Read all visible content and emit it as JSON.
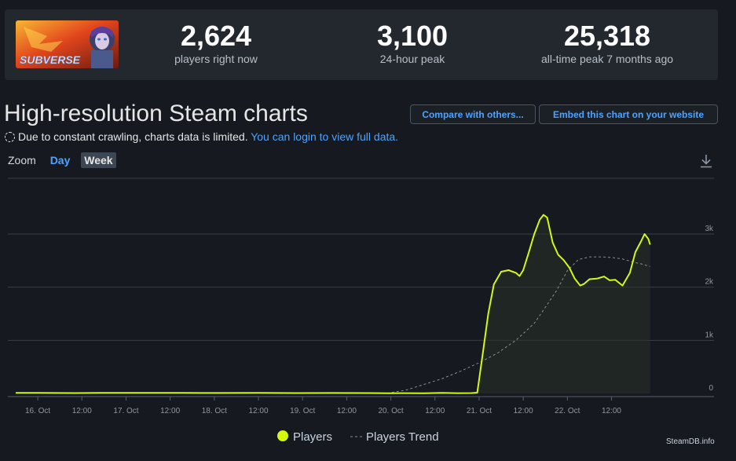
{
  "header": {
    "logo_text": "SUBVERSE",
    "stats": [
      {
        "value": "2,624",
        "label": "players right now"
      },
      {
        "value": "3,100",
        "label": "24-hour peak"
      },
      {
        "value": "25,318",
        "label": "all-time peak 7 months ago"
      }
    ]
  },
  "page": {
    "title": "High-resolution Steam charts",
    "compare_button": "Compare with others...",
    "embed_button": "Embed this chart on your website",
    "notice_text": "Due to constant crawling, charts data is limited.",
    "notice_link": "You can login to view full data.",
    "zoom_label": "Zoom",
    "zoom_day": "Day",
    "zoom_week": "Week",
    "watermark": "SteamDB.info"
  },
  "colors": {
    "players": "#d4f90f",
    "trend": "#8a8f96",
    "grid": "#3a3f47",
    "accent": "#4da3ff"
  },
  "chart_data": {
    "type": "line",
    "title": "",
    "xlabel": "",
    "ylabel": "",
    "ylim": [
      0,
      3000
    ],
    "x_range_hours": [
      -6,
      174
    ],
    "y_ticks": [
      {
        "value": 0,
        "label": "0"
      },
      {
        "value": 1000,
        "label": "1k"
      },
      {
        "value": 2000,
        "label": "2k"
      },
      {
        "value": 3000,
        "label": "3k"
      }
    ],
    "x_ticks": [
      {
        "hours": 0,
        "label": "16. Oct"
      },
      {
        "hours": 12,
        "label": "12:00"
      },
      {
        "hours": 24,
        "label": "17. Oct"
      },
      {
        "hours": 36,
        "label": "12:00"
      },
      {
        "hours": 48,
        "label": "18. Oct"
      },
      {
        "hours": 60,
        "label": "12:00"
      },
      {
        "hours": 72,
        "label": "19. Oct"
      },
      {
        "hours": 84,
        "label": "12:00"
      },
      {
        "hours": 96,
        "label": "20. Oct"
      },
      {
        "hours": 108,
        "label": "12:00"
      },
      {
        "hours": 120,
        "label": "21. Oct"
      },
      {
        "hours": 132,
        "label": "12:00"
      },
      {
        "hours": 144,
        "label": "22. Oct"
      },
      {
        "hours": 156,
        "label": "12:00"
      }
    ],
    "series": [
      {
        "name": "Players",
        "points": [
          [
            -6,
            10
          ],
          [
            0,
            12
          ],
          [
            10,
            8
          ],
          [
            20,
            12
          ],
          [
            30,
            10
          ],
          [
            40,
            11
          ],
          [
            50,
            9
          ],
          [
            60,
            10
          ],
          [
            70,
            8
          ],
          [
            80,
            9
          ],
          [
            90,
            8
          ],
          [
            96,
            5
          ],
          [
            100,
            6
          ],
          [
            105,
            5
          ],
          [
            110,
            12
          ],
          [
            114,
            6
          ],
          [
            118,
            8
          ],
          [
            119.5,
            15
          ],
          [
            121,
            750
          ],
          [
            122.5,
            1500
          ],
          [
            124,
            2050
          ],
          [
            126,
            2290
          ],
          [
            128,
            2320
          ],
          [
            130,
            2270
          ],
          [
            131,
            2210
          ],
          [
            132,
            2320
          ],
          [
            133.5,
            2650
          ],
          [
            135,
            3000
          ],
          [
            136.5,
            3270
          ],
          [
            137.5,
            3360
          ],
          [
            138.5,
            3310
          ],
          [
            140,
            2840
          ],
          [
            141.5,
            2610
          ],
          [
            143,
            2510
          ],
          [
            144.5,
            2370
          ],
          [
            146,
            2160
          ],
          [
            147.5,
            2030
          ],
          [
            148.5,
            2060
          ],
          [
            150,
            2150
          ],
          [
            152,
            2160
          ],
          [
            154,
            2200
          ],
          [
            155.5,
            2130
          ],
          [
            157,
            2140
          ],
          [
            159,
            2030
          ],
          [
            161,
            2270
          ],
          [
            162.5,
            2660
          ],
          [
            164,
            2860
          ],
          [
            165,
            3000
          ],
          [
            166,
            2910
          ],
          [
            166.5,
            2800
          ]
        ]
      },
      {
        "name": "Players Trend",
        "points": [
          [
            95,
            5
          ],
          [
            100,
            60
          ],
          [
            105,
            170
          ],
          [
            110,
            280
          ],
          [
            115,
            420
          ],
          [
            120,
            580
          ],
          [
            125,
            760
          ],
          [
            130,
            1000
          ],
          [
            135,
            1320
          ],
          [
            138,
            1620
          ],
          [
            141,
            1930
          ],
          [
            144,
            2310
          ],
          [
            147,
            2520
          ],
          [
            150,
            2570
          ],
          [
            153,
            2570
          ],
          [
            156,
            2560
          ],
          [
            159,
            2530
          ],
          [
            162,
            2470
          ],
          [
            164,
            2440
          ],
          [
            166.5,
            2390
          ]
        ]
      }
    ],
    "legend_position": "bottom-center"
  }
}
